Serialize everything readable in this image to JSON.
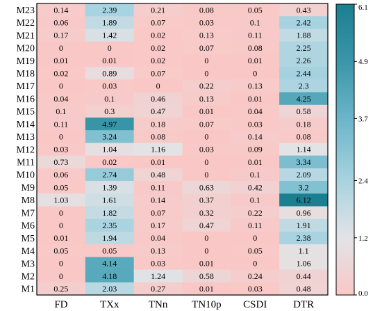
{
  "chart_data": {
    "type": "heatmap",
    "title": "",
    "xlabel": "",
    "ylabel": "",
    "columns": [
      "FD",
      "TXx",
      "TNn",
      "TN10p",
      "CSDI",
      "DTR"
    ],
    "rows": [
      "M23",
      "M22",
      "M21",
      "M20",
      "M19",
      "M18",
      "M17",
      "M16",
      "M15",
      "M14",
      "M13",
      "M12",
      "M11",
      "M10",
      "M9",
      "M8",
      "M7",
      "M6",
      "M5",
      "M4",
      "M3",
      "M2",
      "M1"
    ],
    "values": [
      [
        "0.14",
        "2.39",
        "0.21",
        "0.08",
        "0.05",
        "0.43"
      ],
      [
        "0.06",
        "1.89",
        "0.07",
        "0.03",
        "0.1",
        "2.42"
      ],
      [
        "0.17",
        "1.42",
        "0.02",
        "0.13",
        "0.11",
        "1.88"
      ],
      [
        "0",
        "0",
        "0.02",
        "0.07",
        "0.08",
        "2.25"
      ],
      [
        "0.01",
        "0.01",
        "0.02",
        "0",
        "0.01",
        "2.26"
      ],
      [
        "0.02",
        "0.89",
        "0.07",
        "0",
        "0",
        "2.44"
      ],
      [
        "0",
        "0.03",
        "0",
        "0.22",
        "0.13",
        "2.3"
      ],
      [
        "0.04",
        "0.1",
        "0.46",
        "0.13",
        "0.01",
        "4.25"
      ],
      [
        "0.1",
        "0.3",
        "0.47",
        "0.01",
        "0.04",
        "0.58"
      ],
      [
        "0.11",
        "4.97",
        "0.18",
        "0.07",
        "0.03",
        "0.18"
      ],
      [
        "0",
        "3.24",
        "0.08",
        "0",
        "0.14",
        "0.08"
      ],
      [
        "0.03",
        "1.04",
        "1.16",
        "0.03",
        "0.09",
        "1.14"
      ],
      [
        "0.73",
        "0.02",
        "0.01",
        "0",
        "0.01",
        "3.34"
      ],
      [
        "0.06",
        "2.74",
        "0.48",
        "0",
        "0.1",
        "2.09"
      ],
      [
        "0.05",
        "1.39",
        "0.11",
        "0.63",
        "0.42",
        "3.2"
      ],
      [
        "1.03",
        "1.61",
        "0.14",
        "0.37",
        "0.1",
        "6.12"
      ],
      [
        "0",
        "1.82",
        "0.07",
        "0.32",
        "0.22",
        "0.96"
      ],
      [
        "0",
        "2.35",
        "0.17",
        "0.47",
        "0.11",
        "1.91"
      ],
      [
        "0.01",
        "1.94",
        "0.04",
        "0",
        "0",
        "2.38"
      ],
      [
        "0.05",
        "0.05",
        "0.13",
        "0",
        "0.05",
        "1.1"
      ],
      [
        "0",
        "4.14",
        "0.03",
        "0.01",
        "0",
        "1.06"
      ],
      [
        "0",
        "4.18",
        "1.24",
        "0.58",
        "0.24",
        "0.44"
      ],
      [
        "0.25",
        "2.03",
        "0.27",
        "0.01",
        "0.03",
        "0.48"
      ]
    ],
    "colorbar": {
      "min": 0.0,
      "max": 6.1,
      "ticks": [
        "0.0",
        "1.2",
        "2.4",
        "3.7",
        "4.9",
        "6.1"
      ],
      "tick_values": [
        0.0,
        1.2,
        2.4,
        3.7,
        4.9,
        6.1
      ],
      "colors": [
        {
          "v": 0.0,
          "c": "#f9c8c6"
        },
        {
          "v": 1.2,
          "c": "#e2e3e6"
        },
        {
          "v": 2.4,
          "c": "#a8d3e0"
        },
        {
          "v": 3.7,
          "c": "#6bb5c8"
        },
        {
          "v": 4.9,
          "c": "#3a96a8"
        },
        {
          "v": 6.1,
          "c": "#1a7f8f"
        }
      ],
      "placement": "right"
    },
    "grid": false
  }
}
